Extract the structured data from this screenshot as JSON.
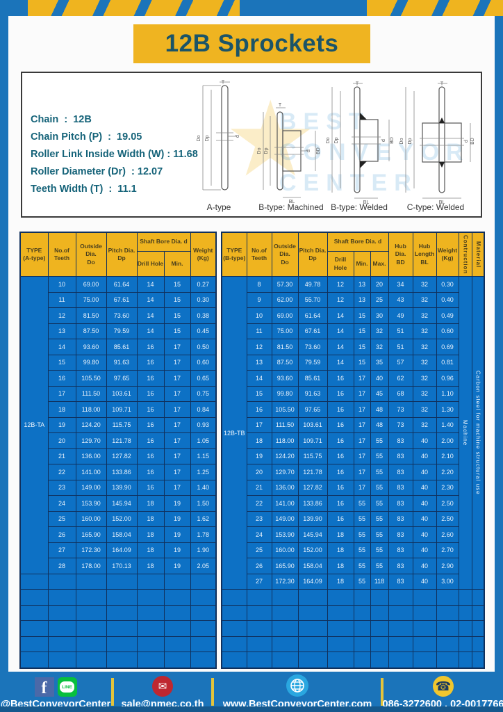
{
  "page": {
    "title": "12B Sprockets"
  },
  "specs": {
    "lines": [
      "Chain  :  12B",
      "Chain Pitch (P)  :  19.05",
      "Roller Link Inside Width (W) : 11.68",
      "Roller Diameter (Dr)  : 12.07",
      "Teeth Width (T)  :  11.1"
    ],
    "diagram_labels": [
      "A-type",
      "B-type: Machined",
      "B-type: Welded",
      "C-type: Welded"
    ],
    "dim": {
      "do": "Do",
      "dp": "Dp",
      "t": "T",
      "d": "d",
      "bd": "BD",
      "bl": "BL"
    }
  },
  "watermark": {
    "star": "★",
    "text": "BEST\nCONVEYOR\nCENTER"
  },
  "table_a": {
    "headers": {
      "type": "TYPE\n(A-type)",
      "teeth": "No.of\nTeeth",
      "outside": "Outside\nDia.\nDo",
      "pitch": "Pitch Dia.\nDp",
      "shaft_bore": "Shaft Bore Dia. d",
      "drill": "Drill Hole",
      "min": "Min.",
      "weight": "Weight\n(Kg)"
    },
    "type_label": "12B-TA",
    "rows": [
      [
        "10",
        "69.00",
        "61.64",
        "14",
        "15",
        "0.27"
      ],
      [
        "11",
        "75.00",
        "67.61",
        "14",
        "15",
        "0.30"
      ],
      [
        "12",
        "81.50",
        "73.60",
        "14",
        "15",
        "0.38"
      ],
      [
        "13",
        "87.50",
        "79.59",
        "14",
        "15",
        "0.45"
      ],
      [
        "14",
        "93.60",
        "85.61",
        "16",
        "17",
        "0.50"
      ],
      [
        "15",
        "99.80",
        "91.63",
        "16",
        "17",
        "0.60"
      ],
      [
        "16",
        "105.50",
        "97.65",
        "16",
        "17",
        "0.65"
      ],
      [
        "17",
        "111.50",
        "103.61",
        "16",
        "17",
        "0.75"
      ],
      [
        "18",
        "118.00",
        "109.71",
        "16",
        "17",
        "0.84"
      ],
      [
        "19",
        "124.20",
        "115.75",
        "16",
        "17",
        "0.93"
      ],
      [
        "20",
        "129.70",
        "121.78",
        "16",
        "17",
        "1.05"
      ],
      [
        "21",
        "136.00",
        "127.82",
        "16",
        "17",
        "1.15"
      ],
      [
        "22",
        "141.00",
        "133.86",
        "16",
        "17",
        "1.25"
      ],
      [
        "23",
        "149.00",
        "139.90",
        "16",
        "17",
        "1.40"
      ],
      [
        "24",
        "153.90",
        "145.94",
        "18",
        "19",
        "1.50"
      ],
      [
        "25",
        "160.00",
        "152.00",
        "18",
        "19",
        "1.62"
      ],
      [
        "26",
        "165.90",
        "158.04",
        "18",
        "19",
        "1.78"
      ],
      [
        "27",
        "172.30",
        "164.09",
        "18",
        "19",
        "1.90"
      ],
      [
        "28",
        "178.00",
        "170.13",
        "18",
        "19",
        "2.05"
      ]
    ],
    "empty_rows": 6
  },
  "table_b": {
    "headers": {
      "type": "TYPE\n(B-type)",
      "teeth": "No.of\nTeeth",
      "outside": "Outside\nDia.\nDo",
      "pitch": "Pitch Dia.\nDp",
      "shaft_bore": "Shaft Bore Dia. d",
      "drill": "Drill Hole",
      "min": "Min.",
      "max": "Max.",
      "hub_dia": "Hub Dia.\nBD",
      "hub_len": "Hub\nLength\nBL",
      "weight": "Weight\n(Kg)",
      "construction": "Contruction",
      "material": "Material"
    },
    "type_label": "12B-TB",
    "construction_value": "Machine",
    "material_value": "Carbon steel for machine structural use",
    "rows": [
      [
        "8",
        "57.30",
        "49.78",
        "12",
        "13",
        "20",
        "34",
        "32",
        "0.30"
      ],
      [
        "9",
        "62.00",
        "55.70",
        "12",
        "13",
        "25",
        "43",
        "32",
        "0.40"
      ],
      [
        "10",
        "69.00",
        "61.64",
        "14",
        "15",
        "30",
        "49",
        "32",
        "0.49"
      ],
      [
        "11",
        "75.00",
        "67.61",
        "14",
        "15",
        "32",
        "51",
        "32",
        "0.60"
      ],
      [
        "12",
        "81.50",
        "73.60",
        "14",
        "15",
        "32",
        "51",
        "32",
        "0.69"
      ],
      [
        "13",
        "87.50",
        "79.59",
        "14",
        "15",
        "35",
        "57",
        "32",
        "0.81"
      ],
      [
        "14",
        "93.60",
        "85.61",
        "16",
        "17",
        "40",
        "62",
        "32",
        "0.96"
      ],
      [
        "15",
        "99.80",
        "91.63",
        "16",
        "17",
        "45",
        "68",
        "32",
        "1.10"
      ],
      [
        "16",
        "105.50",
        "97.65",
        "16",
        "17",
        "48",
        "73",
        "32",
        "1.30"
      ],
      [
        "17",
        "111.50",
        "103.61",
        "16",
        "17",
        "48",
        "73",
        "32",
        "1.40"
      ],
      [
        "18",
        "118.00",
        "109.71",
        "16",
        "17",
        "55",
        "83",
        "40",
        "2.00"
      ],
      [
        "19",
        "124.20",
        "115.75",
        "16",
        "17",
        "55",
        "83",
        "40",
        "2.10"
      ],
      [
        "20",
        "129.70",
        "121.78",
        "16",
        "17",
        "55",
        "83",
        "40",
        "2.20"
      ],
      [
        "21",
        "136.00",
        "127.82",
        "16",
        "17",
        "55",
        "83",
        "40",
        "2.30"
      ],
      [
        "22",
        "141.00",
        "133.86",
        "16",
        "55",
        "55",
        "83",
        "40",
        "2.50"
      ],
      [
        "23",
        "149.00",
        "139.90",
        "16",
        "55",
        "55",
        "83",
        "40",
        "2.50"
      ],
      [
        "24",
        "153.90",
        "145.94",
        "18",
        "55",
        "55",
        "83",
        "40",
        "2.60"
      ],
      [
        "25",
        "160.00",
        "152.00",
        "18",
        "55",
        "55",
        "83",
        "40",
        "2.70"
      ],
      [
        "26",
        "165.90",
        "158.04",
        "18",
        "55",
        "55",
        "83",
        "40",
        "2.90"
      ],
      [
        "27",
        "172.30",
        "164.09",
        "18",
        "55",
        "118",
        "83",
        "40",
        "3.00"
      ]
    ],
    "empty_rows": 5
  },
  "footer": {
    "facebook_letter": "f",
    "line_text": "LINE",
    "mail_glyph": "✉",
    "phone_glyph": "☎",
    "social_label": "@BestConveyorCenter",
    "email": "sale@nmec.co.th",
    "website": "www.BestConveyorCenter.com",
    "phone": "086-3272600 , 02-0017766"
  }
}
